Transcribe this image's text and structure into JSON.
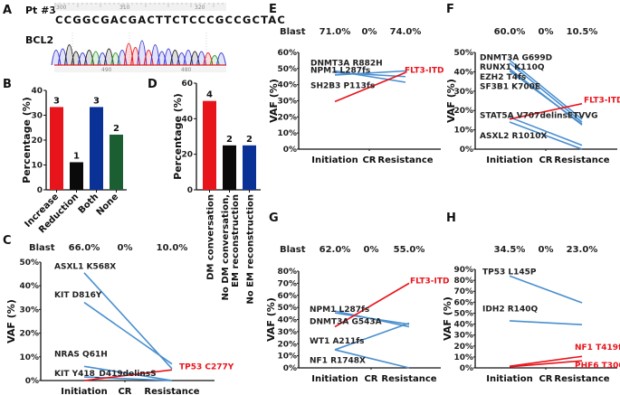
{
  "panels": {
    "A": {
      "label": "A",
      "patient": "Pt #3",
      "gene": "BCL2",
      "ruler_ticks": [
        "300",
        "310",
        "320"
      ],
      "sequence": "CCGGCGACGACTTCTCCCGCCGCTAC",
      "trace_ticks": [
        "490",
        "480"
      ],
      "colors": {
        "A": "#2ca02c",
        "C": "#3b3bd6",
        "G": "#222222",
        "T": "#e8141c"
      }
    },
    "B": {
      "label": "B"
    },
    "C": {
      "label": "C"
    },
    "D": {
      "label": "D"
    },
    "E": {
      "label": "E"
    },
    "F": {
      "label": "F"
    },
    "G": {
      "label": "G"
    },
    "H": {
      "label": "H"
    }
  },
  "chart_data": [
    {
      "id": "B",
      "type": "bar",
      "title": "",
      "xlabel": "",
      "ylabel": "Percentage (%)",
      "ylim": [
        0,
        40
      ],
      "yticks": [
        "0",
        "10",
        "20",
        "30",
        "40"
      ],
      "categories": [
        "Increase",
        "Reduction",
        "Both",
        "None"
      ],
      "values": [
        33.3,
        11.1,
        33.3,
        22.2
      ],
      "counts": [
        "3",
        "1",
        "3",
        "2"
      ],
      "colors": [
        "#e8141c",
        "#0a0a0a",
        "#0a3296",
        "#1a5e32"
      ]
    },
    {
      "id": "D",
      "type": "bar",
      "title": "",
      "xlabel": "",
      "ylabel": "Percentage (%)",
      "ylim": [
        0,
        60
      ],
      "yticks": [
        "0",
        "20",
        "40",
        "60"
      ],
      "categories": [
        "DM conversation",
        "No DM conversation, EM reconstruction",
        "No EM reconstruction"
      ],
      "category_lines": [
        [
          "DM conversation"
        ],
        [
          "No DM conversation,",
          "EM reconstruction"
        ],
        [
          "No EM reconstruction"
        ]
      ],
      "values": [
        50,
        25,
        25
      ],
      "counts": [
        "4",
        "2",
        "2"
      ],
      "colors": [
        "#e8141c",
        "#0a0a0a",
        "#0a3296"
      ]
    },
    {
      "id": "C",
      "type": "line",
      "ylabel": "VAF (%)",
      "ylim": [
        0,
        50
      ],
      "yticks": [
        "0%",
        "10%",
        "20%",
        "30%",
        "40%",
        "50%"
      ],
      "x": [
        "Initiation",
        "CR",
        "Resistance"
      ],
      "blast_label": "Blast",
      "blast": [
        "66.0%",
        "0%",
        "10.0%"
      ],
      "series": [
        {
          "name": "ASXL1 K568X",
          "color": "blue",
          "values": [
            45.5,
            null,
            5.0
          ]
        },
        {
          "name": "KIT D816Y",
          "color": "blue",
          "values": [
            33.0,
            null,
            7.0
          ]
        },
        {
          "name": "NRAS Q61H",
          "color": "blue",
          "values": [
            6.0,
            null,
            0.0
          ]
        },
        {
          "name": "KIT Y418_D419delinsS",
          "color": "blue",
          "values": [
            1.5,
            null,
            0.0
          ]
        },
        {
          "name": "TP53 C277Y",
          "color": "red",
          "values": [
            0.0,
            null,
            4.5
          ]
        }
      ],
      "labels": [
        {
          "text": "ASXL1 K568X",
          "red": false,
          "v": 48.3
        },
        {
          "text": "KIT D816Y",
          "red": false,
          "v": 36.3
        },
        {
          "text": "NRAS Q61H",
          "red": false,
          "v": 11.3
        },
        {
          "text": "KIT Y418_D419delinsS",
          "red": false,
          "v": 3.0
        },
        {
          "text": "TP53 C277Y",
          "red": true,
          "v": 6.0,
          "right": true
        }
      ]
    },
    {
      "id": "E",
      "type": "line",
      "ylabel": "VAF (%)",
      "ylim": [
        0,
        60
      ],
      "yticks": [
        "0%",
        "10%",
        "20%",
        "30%",
        "40%",
        "50%",
        "60%"
      ],
      "x": [
        "Initiation",
        "CR",
        "Resistance"
      ],
      "blast_label": "Blast",
      "blast": [
        "71.0%",
        "0%",
        "74.0%"
      ],
      "series": [
        {
          "name": "DNMT3A R882H",
          "color": "blue",
          "values": [
            48.5,
            null,
            41.5
          ]
        },
        {
          "name": "NPM1 L287fs",
          "color": "blue",
          "values": [
            47.5,
            null,
            45.0
          ]
        },
        {
          "name": "SH2B3 P113fs",
          "color": "blue",
          "values": [
            46.0,
            null,
            48.5
          ]
        },
        {
          "name": "FLT3-ITD",
          "color": "red",
          "values": [
            29.5,
            null,
            47.5
          ]
        }
      ],
      "labels": [
        {
          "text": "DNMT3A R882H",
          "red": false,
          "v": 53.5
        },
        {
          "text": "NPM1 L287fs",
          "red": false,
          "v": 49.0
        },
        {
          "text": "SH2B3 P113fs",
          "red": false,
          "v": 39.5
        },
        {
          "text": "FLT3-ITD",
          "red": true,
          "v": 49.0,
          "right": true
        }
      ]
    },
    {
      "id": "F",
      "type": "line",
      "ylabel": "VAF (%)",
      "ylim": [
        0,
        50
      ],
      "yticks": [
        "0%",
        "10%",
        "20%",
        "30%",
        "40%",
        "50%"
      ],
      "x": [
        "Initiation",
        "CR",
        "Resistance"
      ],
      "blast_label": "",
      "blast": [
        "60.0%",
        "0%",
        "10.5%"
      ],
      "series": [
        {
          "name": "DNMT3A G699D",
          "color": "blue",
          "values": [
            46.0,
            null,
            15.5
          ]
        },
        {
          "name": "RUNX1 K110Q",
          "color": "blue",
          "values": [
            44.5,
            null,
            14.0
          ]
        },
        {
          "name": "EZH2 T4fs",
          "color": "blue",
          "values": [
            41.5,
            null,
            12.5
          ]
        },
        {
          "name": "SF3B1 K700E",
          "color": "blue",
          "values": [
            40.5,
            null,
            13.0
          ]
        },
        {
          "name": "STAT5A V707delinsETVVG",
          "color": "blue",
          "values": [
            16.5,
            null,
            2.0
          ]
        },
        {
          "name": "ASXL2 R1010X",
          "color": "blue",
          "values": [
            14.0,
            null,
            0.0
          ]
        },
        {
          "name": "FLT3-ITD",
          "color": "red",
          "values": [
            15.5,
            null,
            23.5
          ]
        }
      ],
      "labels": [
        {
          "text": "DNMT3A G699D",
          "red": false,
          "v": 47.5
        },
        {
          "text": "RUNX1 K110Q",
          "red": false,
          "v": 42.5
        },
        {
          "text": "EZH2 T4fs",
          "red": false,
          "v": 37.5
        },
        {
          "text": "SF3B1 K700E",
          "red": false,
          "v": 32.5
        },
        {
          "text": "STAT5A V707delinsETVVG",
          "red": false,
          "v": 17.5
        },
        {
          "text": "ASXL2 R1010X",
          "red": false,
          "v": 7.0
        },
        {
          "text": "FLT3-ITD",
          "red": true,
          "v": 25.5,
          "right": true
        }
      ]
    },
    {
      "id": "G",
      "type": "line",
      "ylabel": "VAF (%)",
      "ylim": [
        0,
        80
      ],
      "yticks": [
        "0%",
        "10%",
        "20%",
        "30%",
        "40%",
        "50%",
        "60%",
        "70%",
        "80%"
      ],
      "x": [
        "Initiation",
        "CR",
        "Resistance"
      ],
      "blast_label": "Blast",
      "blast": [
        "62.0%",
        "0%",
        "55.0%"
      ],
      "series": [
        {
          "name": "NPM1 L287fs",
          "color": "blue",
          "values": [
            47.0,
            null,
            34.0
          ]
        },
        {
          "name": "DNMT3A G543A",
          "color": "blue",
          "values": [
            45.5,
            null,
            36.0
          ]
        },
        {
          "name": "WT1 A211fs",
          "color": "blue",
          "values": [
            15.0,
            null,
            37.0
          ]
        },
        {
          "name": "NF1 R1748X",
          "color": "blue",
          "values": [
            15.0,
            null,
            0.0
          ]
        },
        {
          "name": "FLT3-ITD",
          "color": "red",
          "values": [
            34.0,
            null,
            70.0
          ]
        }
      ],
      "labels": [
        {
          "text": "NPM1 L287fs",
          "red": false,
          "v": 48.5
        },
        {
          "text": "DNMT3A G543A",
          "red": false,
          "v": 38.5
        },
        {
          "text": "WT1 A211fs",
          "red": false,
          "v": 22.5
        },
        {
          "text": "NF1 R1748X",
          "red": false,
          "v": 6.5
        },
        {
          "text": "FLT3-ITD",
          "red": true,
          "v": 72.0,
          "right": true
        }
      ]
    },
    {
      "id": "H",
      "type": "line",
      "ylabel": "VAF (%)",
      "ylim": [
        0,
        90
      ],
      "yticks": [
        "0%",
        "10%",
        "20%",
        "30%",
        "40%",
        "50%",
        "60%",
        "70%",
        "80%",
        "90%"
      ],
      "x": [
        "Initiation",
        "CR",
        "Resistance"
      ],
      "blast_label": "",
      "blast": [
        "34.5%",
        "0%",
        "23.0%"
      ],
      "series": [
        {
          "name": "TP53 L145P",
          "color": "blue",
          "values": [
            84.0,
            null,
            59.5
          ]
        },
        {
          "name": "IDH2 R140Q",
          "color": "blue",
          "values": [
            43.0,
            null,
            39.5
          ]
        },
        {
          "name": "NF1 T419fs",
          "color": "red",
          "values": [
            1.5,
            null,
            10.5
          ]
        },
        {
          "name": "PHF6 T300A",
          "color": "red",
          "values": [
            1.0,
            null,
            6.5
          ]
        }
      ],
      "labels": [
        {
          "text": "TP53 L145P",
          "red": false,
          "v": 88.0
        },
        {
          "text": "IDH2 R140Q",
          "red": false,
          "v": 54.0
        },
        {
          "text": "NF1 T419fs",
          "red": true,
          "v": 19.0,
          "right": true
        },
        {
          "text": "PHF6 T300A",
          "red": true,
          "v": 2.5,
          "right": true
        }
      ]
    }
  ]
}
